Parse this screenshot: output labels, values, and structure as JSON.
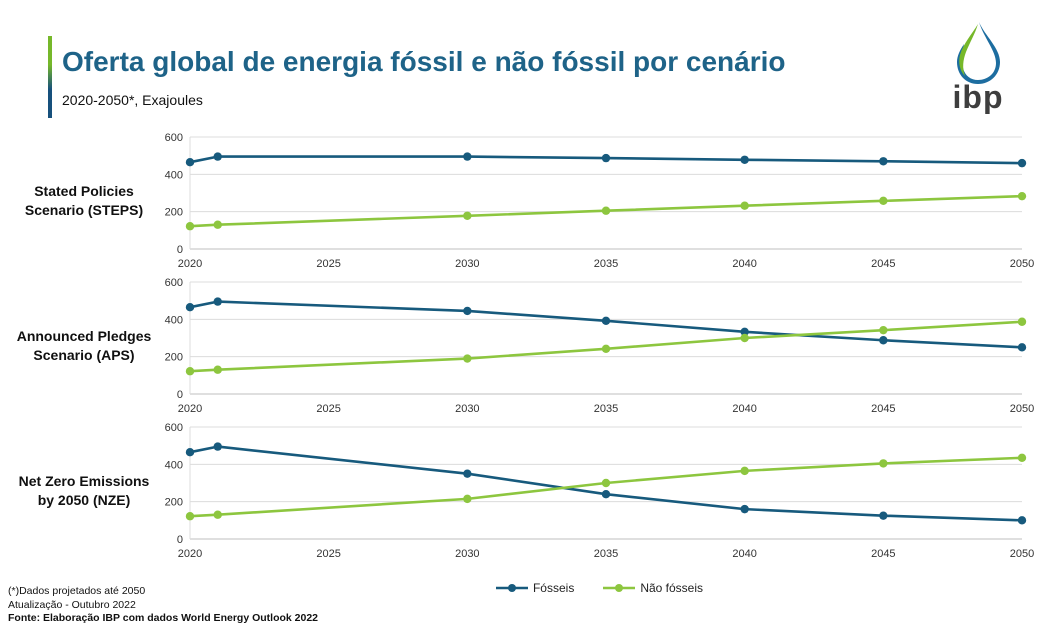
{
  "header": {
    "title": "Oferta global de energia fóssil e não fóssil por cenário",
    "subtitle": "2020-2050*, Exajoules",
    "logo_text": "ibp"
  },
  "colors": {
    "title_blue": "#1E6388",
    "fossil_blue": "#175A7D",
    "nonfossil_green": "#8DC63F",
    "gridline_gray": "#DCDCDC",
    "logo_green": "#76B82A",
    "logo_blue": "#1D6DA0",
    "logo_text_gray": "#3E3E3E"
  },
  "legend": {
    "series": [
      {
        "label": "Fósseis",
        "color": "#175A7D"
      },
      {
        "label": "Não fósseis",
        "color": "#8DC63F"
      }
    ]
  },
  "footnotes": {
    "line1": "(*)Dados projetados até 2050",
    "line2": "Atualização - Outubro 2022",
    "line3": "Fonte: Elaboração IBP com dados World Energy Outlook 2022"
  },
  "chart_data": [
    {
      "type": "line",
      "scenario_label": "Stated Policies Scenario (STEPS)",
      "x": [
        2020,
        2021,
        2030,
        2035,
        2040,
        2045,
        2050
      ],
      "xticks": [
        2020,
        2025,
        2030,
        2035,
        2040,
        2045,
        2050
      ],
      "yticks": [
        0,
        200,
        400,
        600
      ],
      "ylim": [
        0,
        600
      ],
      "grid": true,
      "series": [
        {
          "name": "Fósseis",
          "color": "#175A7D",
          "values": [
            465,
            495,
            495,
            487,
            478,
            470,
            460
          ]
        },
        {
          "name": "Não fósseis",
          "color": "#8DC63F",
          "values": [
            122,
            130,
            178,
            205,
            232,
            258,
            283
          ]
        }
      ]
    },
    {
      "type": "line",
      "scenario_label": "Announced Pledges Scenario (APS)",
      "x": [
        2020,
        2021,
        2030,
        2035,
        2040,
        2045,
        2050
      ],
      "xticks": [
        2020,
        2025,
        2030,
        2035,
        2040,
        2045,
        2050
      ],
      "yticks": [
        0,
        200,
        400,
        600
      ],
      "ylim": [
        0,
        600
      ],
      "grid": true,
      "series": [
        {
          "name": "Fósseis",
          "color": "#175A7D",
          "values": [
            465,
            495,
            445,
            392,
            333,
            288,
            250
          ]
        },
        {
          "name": "Não fósseis",
          "color": "#8DC63F",
          "values": [
            122,
            130,
            190,
            242,
            300,
            342,
            387
          ]
        }
      ]
    },
    {
      "type": "line",
      "scenario_label": "Net Zero Emissions by 2050 (NZE)",
      "x": [
        2020,
        2021,
        2030,
        2035,
        2040,
        2045,
        2050
      ],
      "xticks": [
        2020,
        2025,
        2030,
        2035,
        2040,
        2045,
        2050
      ],
      "yticks": [
        0,
        200,
        400,
        600
      ],
      "ylim": [
        0,
        600
      ],
      "grid": true,
      "series": [
        {
          "name": "Fósseis",
          "color": "#175A7D",
          "values": [
            465,
            495,
            350,
            240,
            160,
            125,
            100
          ]
        },
        {
          "name": "Não fósseis",
          "color": "#8DC63F",
          "values": [
            122,
            130,
            215,
            300,
            365,
            405,
            435
          ]
        }
      ]
    }
  ]
}
